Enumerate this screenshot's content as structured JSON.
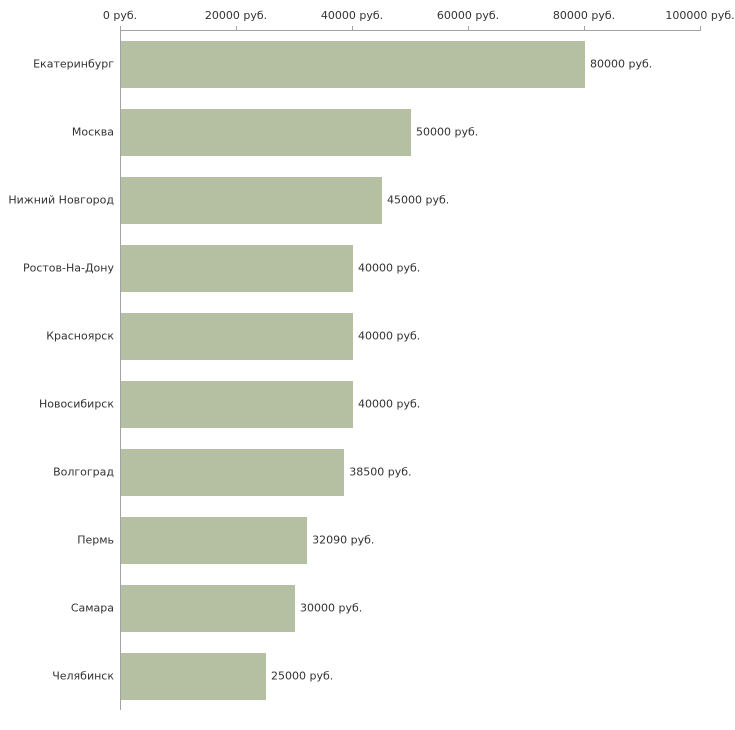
{
  "chart_data": {
    "type": "bar",
    "orientation": "horizontal",
    "title": "",
    "xlabel": "",
    "ylabel": "",
    "xlim": [
      0,
      100000
    ],
    "grid": false,
    "legend": false,
    "bar_color": "#b5bfa2",
    "axis_color": "#a3a3a3",
    "text_color": "#333333",
    "x_ticks": [
      {
        "value": 0,
        "label": "0 руб."
      },
      {
        "value": 20000,
        "label": "20000 руб."
      },
      {
        "value": 40000,
        "label": "40000 руб."
      },
      {
        "value": 60000,
        "label": "60000 руб."
      },
      {
        "value": 80000,
        "label": "80000 руб."
      },
      {
        "value": 100000,
        "label": "100000 руб."
      }
    ],
    "categories": [
      "Екатеринбург",
      "Москва",
      "Нижний Новгород",
      "Ростов-На-Дону",
      "Красноярск",
      "Новосибирск",
      "Волгоград",
      "Пермь",
      "Самара",
      "Челябинск"
    ],
    "values": [
      80000,
      50000,
      45000,
      40000,
      40000,
      40000,
      38500,
      32090,
      30000,
      25000
    ],
    "value_labels": [
      "80000 руб.",
      "50000 руб.",
      "45000 руб.",
      "40000 руб.",
      "40000 руб.",
      "40000 руб.",
      "38500 руб.",
      "32090 руб.",
      "30000 руб.",
      "25000 руб."
    ]
  }
}
